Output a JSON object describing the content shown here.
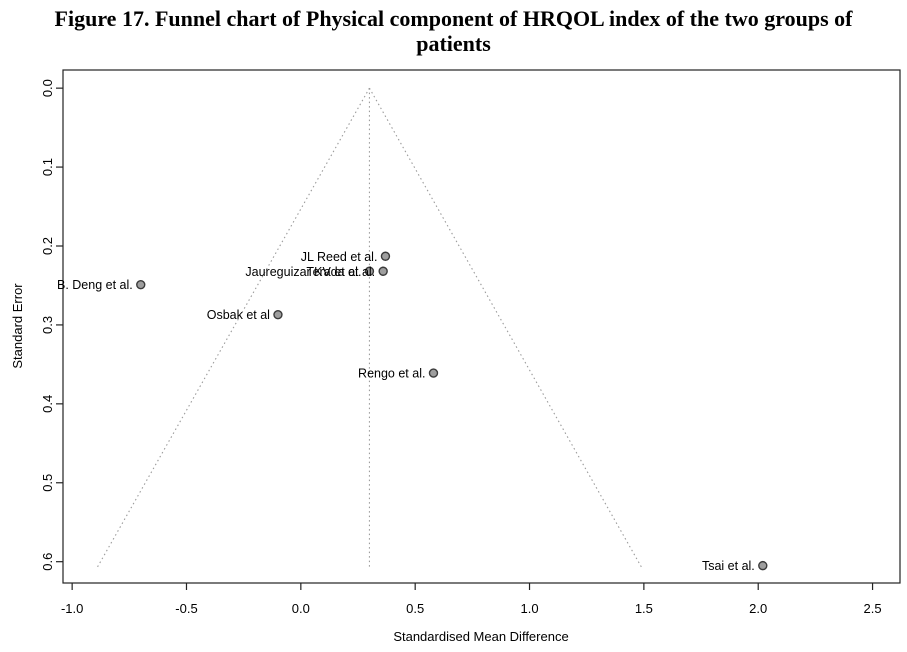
{
  "figure": {
    "title_full": "Figure 17. Funnel chart of Physical component of HRQOL index of the two groups of patients",
    "title_lines": [
      "Figure 17. Funnel chart of Physical component of HRQOL index of the two groups of",
      "patients"
    ]
  },
  "chart_data": {
    "type": "scatter",
    "subtype": "funnel-plot",
    "xlabel": "Standardised Mean Difference",
    "ylabel": "Standard Error",
    "x_tick_labels": [
      "-1.0",
      "-0.5",
      "0.0",
      "0.5",
      "1.0",
      "1.5",
      "2.0",
      "2.5"
    ],
    "y_tick_labels": [
      "0.0",
      "0.1",
      "0.2",
      "0.3",
      "0.4",
      "0.5",
      "0.6"
    ],
    "xlim": [
      -1.04,
      2.62
    ],
    "ylim_se_top_to_bottom": [
      -0.023,
      0.627
    ],
    "y_axis_direction": "inverted (standard error increases downward)",
    "series": [
      {
        "label": "B. Deng et al.",
        "smd": -0.7,
        "se": 0.249
      },
      {
        "label": "JL Reed et al.",
        "smd": 0.37,
        "se": 0.213
      },
      {
        "label": "Jaureguizar KV et al.",
        "smd": 0.3,
        "se": 0.232
      },
      {
        "label": "Terada et al.",
        "smd": 0.36,
        "se": 0.232
      },
      {
        "label": "Osbak et al",
        "smd": -0.1,
        "se": 0.287
      },
      {
        "label": "Rengo et al.",
        "smd": 0.58,
        "se": 0.361
      },
      {
        "label": "Tsai et al.",
        "smd": 2.02,
        "se": 0.605
      }
    ],
    "funnel": {
      "center_smd": 0.3,
      "ci_z": 1.96,
      "se_top": 0.0,
      "se_bottom": 0.607,
      "pseudo_ci_at_bottom": [
        -0.89,
        1.49
      ],
      "line_style": "dotted"
    },
    "grid": false,
    "legend_position": "none",
    "colors": {
      "point_fill": "#9e9e9e",
      "point_stroke": "#3a3a3a",
      "funnel_line": "#9b9b9b",
      "axis": "#222222",
      "text": "#000000",
      "background": "#ffffff"
    }
  }
}
